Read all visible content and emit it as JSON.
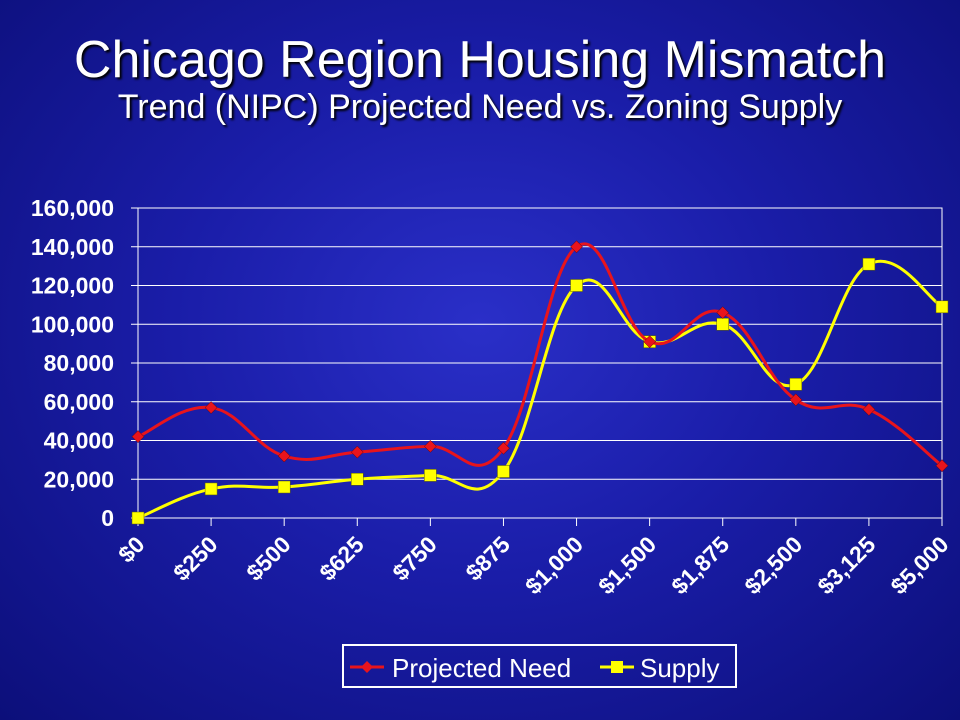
{
  "slide": {
    "title": "Chicago Region Housing Mismatch",
    "subtitle": "Trend (NIPC) Projected Need vs. Zoning Supply"
  },
  "colors": {
    "background": "#1a1da8",
    "axis": "#ffffff",
    "need": "#e8141c",
    "supply": "#ffff00"
  },
  "chart_data": {
    "type": "line",
    "title": "",
    "xlabel": "",
    "ylabel": "",
    "ylim": [
      0,
      160000
    ],
    "yticks": [
      0,
      20000,
      40000,
      60000,
      80000,
      100000,
      120000,
      140000,
      160000
    ],
    "ytick_labels": [
      "0",
      "20,000",
      "40,000",
      "60,000",
      "80,000",
      "100,000",
      "120,000",
      "140,000",
      "160,000"
    ],
    "categories": [
      "$0",
      "$250",
      "$500",
      "$625",
      "$750",
      "$875",
      "$1,000",
      "$1,500",
      "$1,875",
      "$2,500",
      "$3,125",
      "$5,000"
    ],
    "smoothed": true,
    "grid": "horizontal",
    "legend_placement": "bottom",
    "series": [
      {
        "name": "Projected Need",
        "marker": "diamond",
        "values": [
          42000,
          57000,
          32000,
          34000,
          37000,
          36000,
          140000,
          91000,
          106000,
          61000,
          56000,
          27000
        ]
      },
      {
        "name": "Supply",
        "marker": "square",
        "values": [
          0,
          15000,
          16000,
          20000,
          22000,
          24000,
          120000,
          91000,
          100000,
          69000,
          131000,
          109000
        ]
      }
    ]
  }
}
